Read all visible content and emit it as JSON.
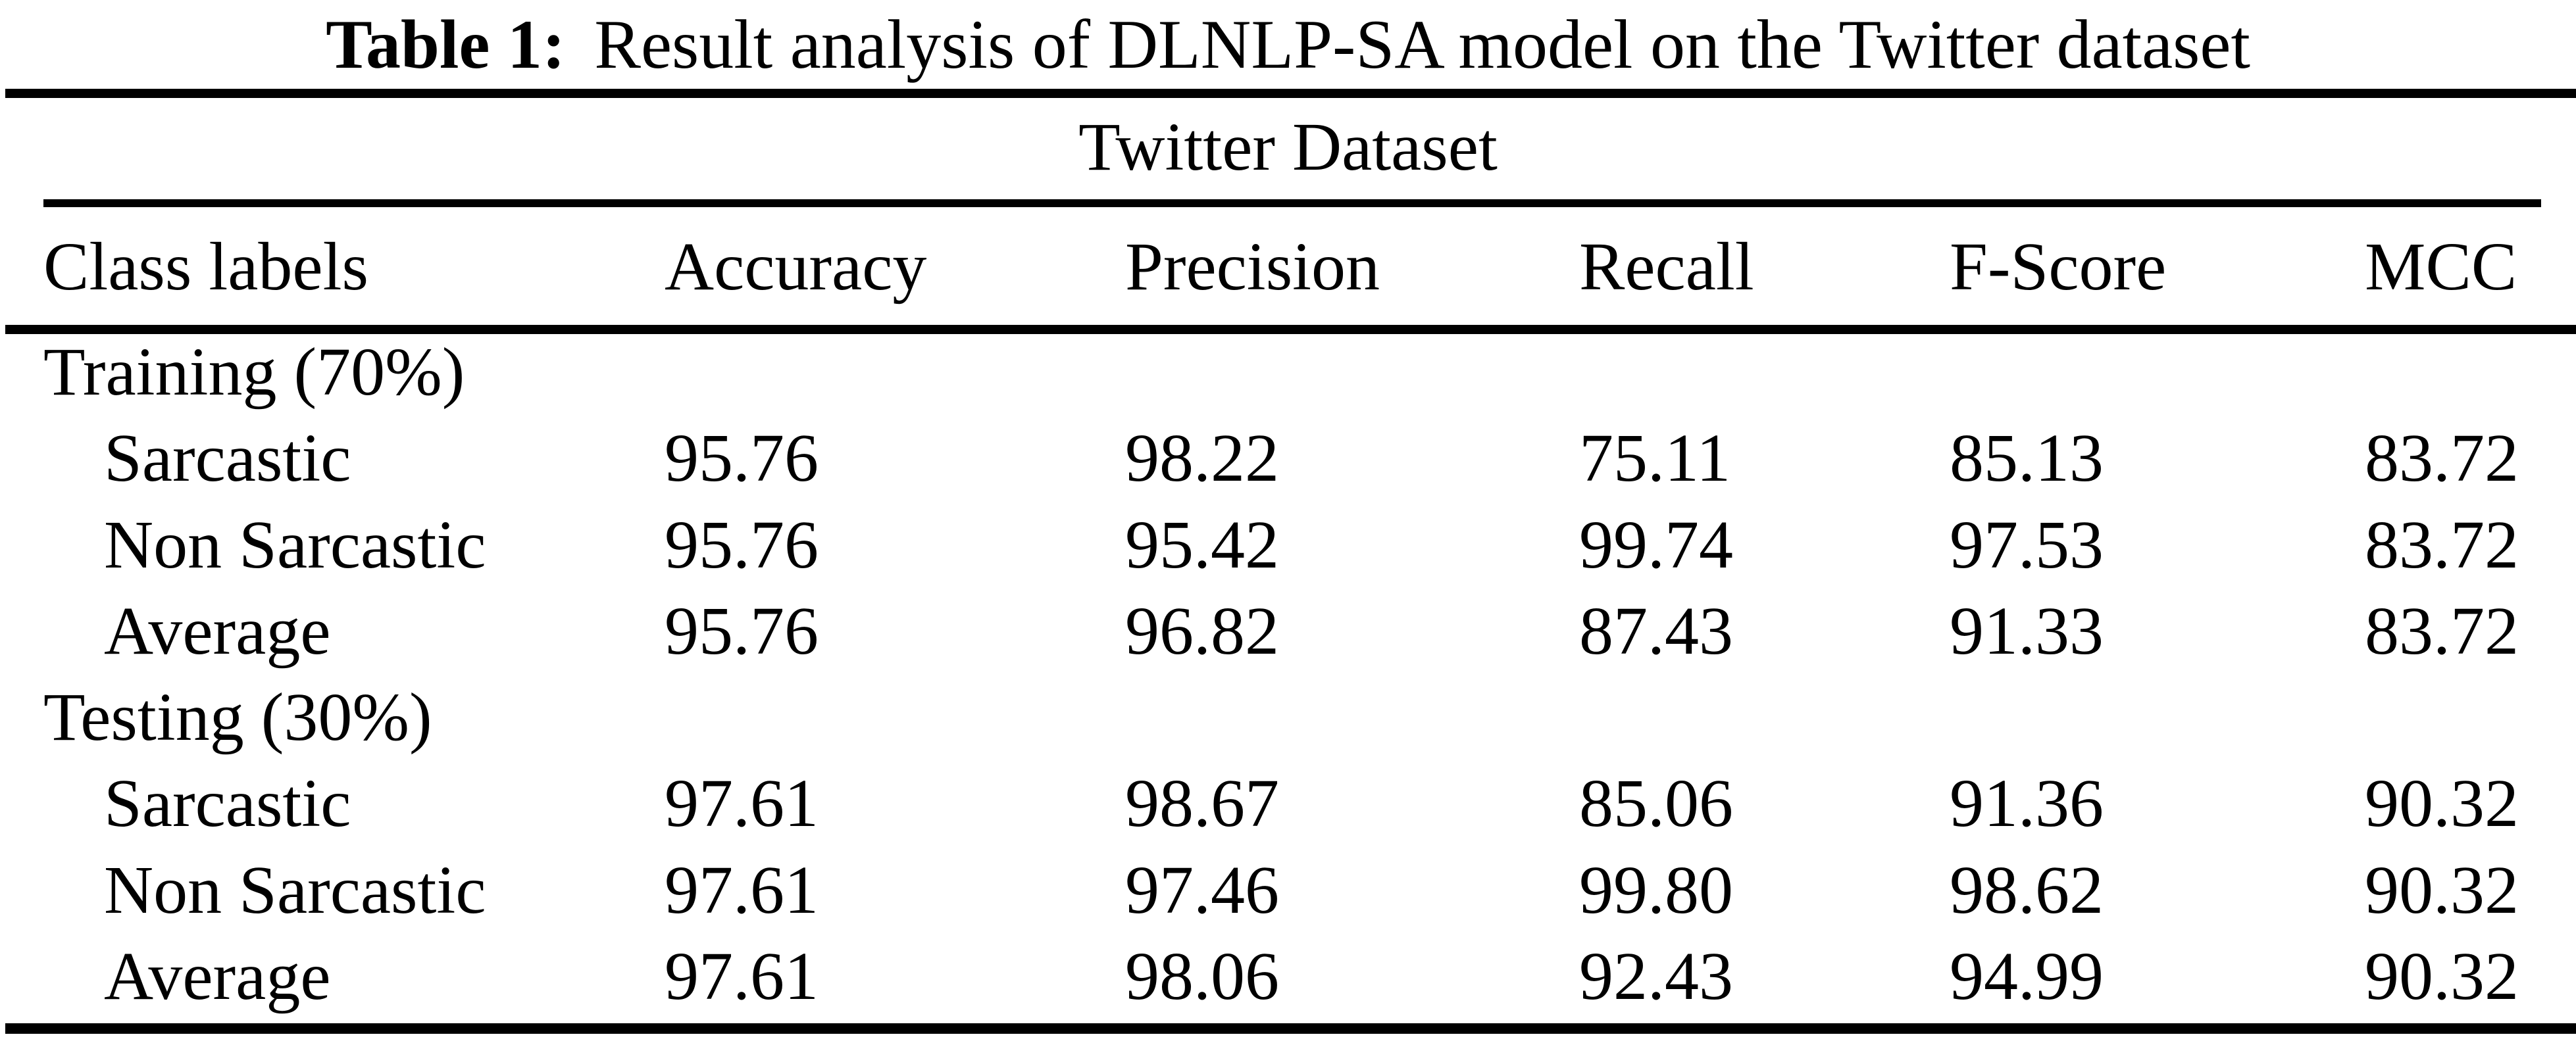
{
  "title": {
    "caption_label": "Table 1:",
    "caption_text": "Result analysis of DLNLP-SA model on the Twitter dataset"
  },
  "colors": {
    "background": "#ffffff",
    "text": "#000000",
    "rule": "#000000"
  },
  "table": {
    "group_header": "Twitter Dataset",
    "columns": [
      "Class labels",
      "Accuracy",
      "Precision",
      "Recall",
      "F-Score",
      "MCC"
    ],
    "rows": [
      {
        "label": "Training (70%)",
        "indent": false,
        "values": [
          "",
          "",
          "",
          "",
          ""
        ]
      },
      {
        "label": "Sarcastic",
        "indent": true,
        "values": [
          "95.76",
          "98.22",
          "75.11",
          "85.13",
          "83.72"
        ]
      },
      {
        "label": "Non Sarcastic",
        "indent": true,
        "values": [
          "95.76",
          "95.42",
          "99.74",
          "97.53",
          "83.72"
        ]
      },
      {
        "label": "Average",
        "indent": true,
        "values": [
          "95.76",
          "96.82",
          "87.43",
          "91.33",
          "83.72"
        ]
      },
      {
        "label": "Testing (30%)",
        "indent": false,
        "values": [
          "",
          "",
          "",
          "",
          ""
        ]
      },
      {
        "label": "Sarcastic",
        "indent": true,
        "values": [
          "97.61",
          "98.67",
          "85.06",
          "91.36",
          "90.32"
        ]
      },
      {
        "label": "Non Sarcastic",
        "indent": true,
        "values": [
          "97.61",
          "97.46",
          "99.80",
          "98.62",
          "90.32"
        ]
      },
      {
        "label": "Average",
        "indent": true,
        "values": [
          "97.61",
          "98.06",
          "92.43",
          "94.99",
          "90.32"
        ]
      }
    ]
  }
}
